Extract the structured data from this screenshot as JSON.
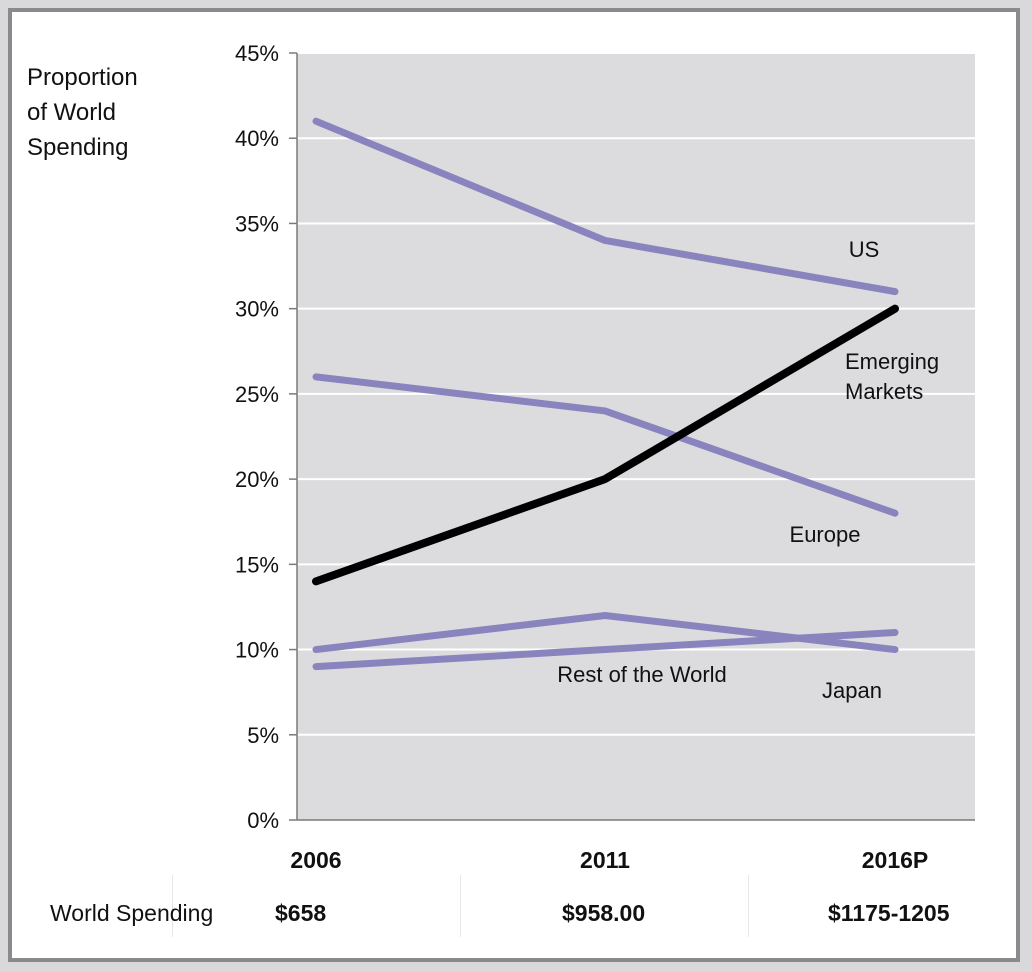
{
  "chart_data": {
    "type": "line",
    "title": "",
    "xlabel": "",
    "ylabel": "Proportion\nof World\nSpending",
    "x": [
      "2006",
      "2011",
      "2016P"
    ],
    "ylim": [
      0,
      45
    ],
    "yticks": [
      "0%",
      "5%",
      "10%",
      "15%",
      "20%",
      "25%",
      "30%",
      "35%",
      "40%",
      "45%"
    ],
    "grid": true,
    "series": [
      {
        "name": "US",
        "values": [
          41,
          34,
          31
        ],
        "color": "#8a84be"
      },
      {
        "name": "Emerging Markets",
        "values": [
          14,
          20,
          30
        ],
        "color": "#000000"
      },
      {
        "name": "Europe",
        "values": [
          26,
          24,
          18
        ],
        "color": "#8a84be"
      },
      {
        "name": "Japan",
        "values": [
          10,
          12,
          10
        ],
        "color": "#8a84be"
      },
      {
        "name": "Rest of the World",
        "values": [
          9,
          10,
          11
        ],
        "color": "#8a84be"
      }
    ],
    "series_labels": [
      {
        "text": "US"
      },
      {
        "text": "Emerging\nMarkets"
      },
      {
        "text": "Europe"
      },
      {
        "text": "Rest of the World"
      },
      {
        "text": "Japan"
      }
    ],
    "plot_background": "#dcdcde"
  },
  "footer": {
    "label": "World Spending",
    "values": [
      "$658",
      "$958.00",
      "$1175-1205"
    ]
  }
}
